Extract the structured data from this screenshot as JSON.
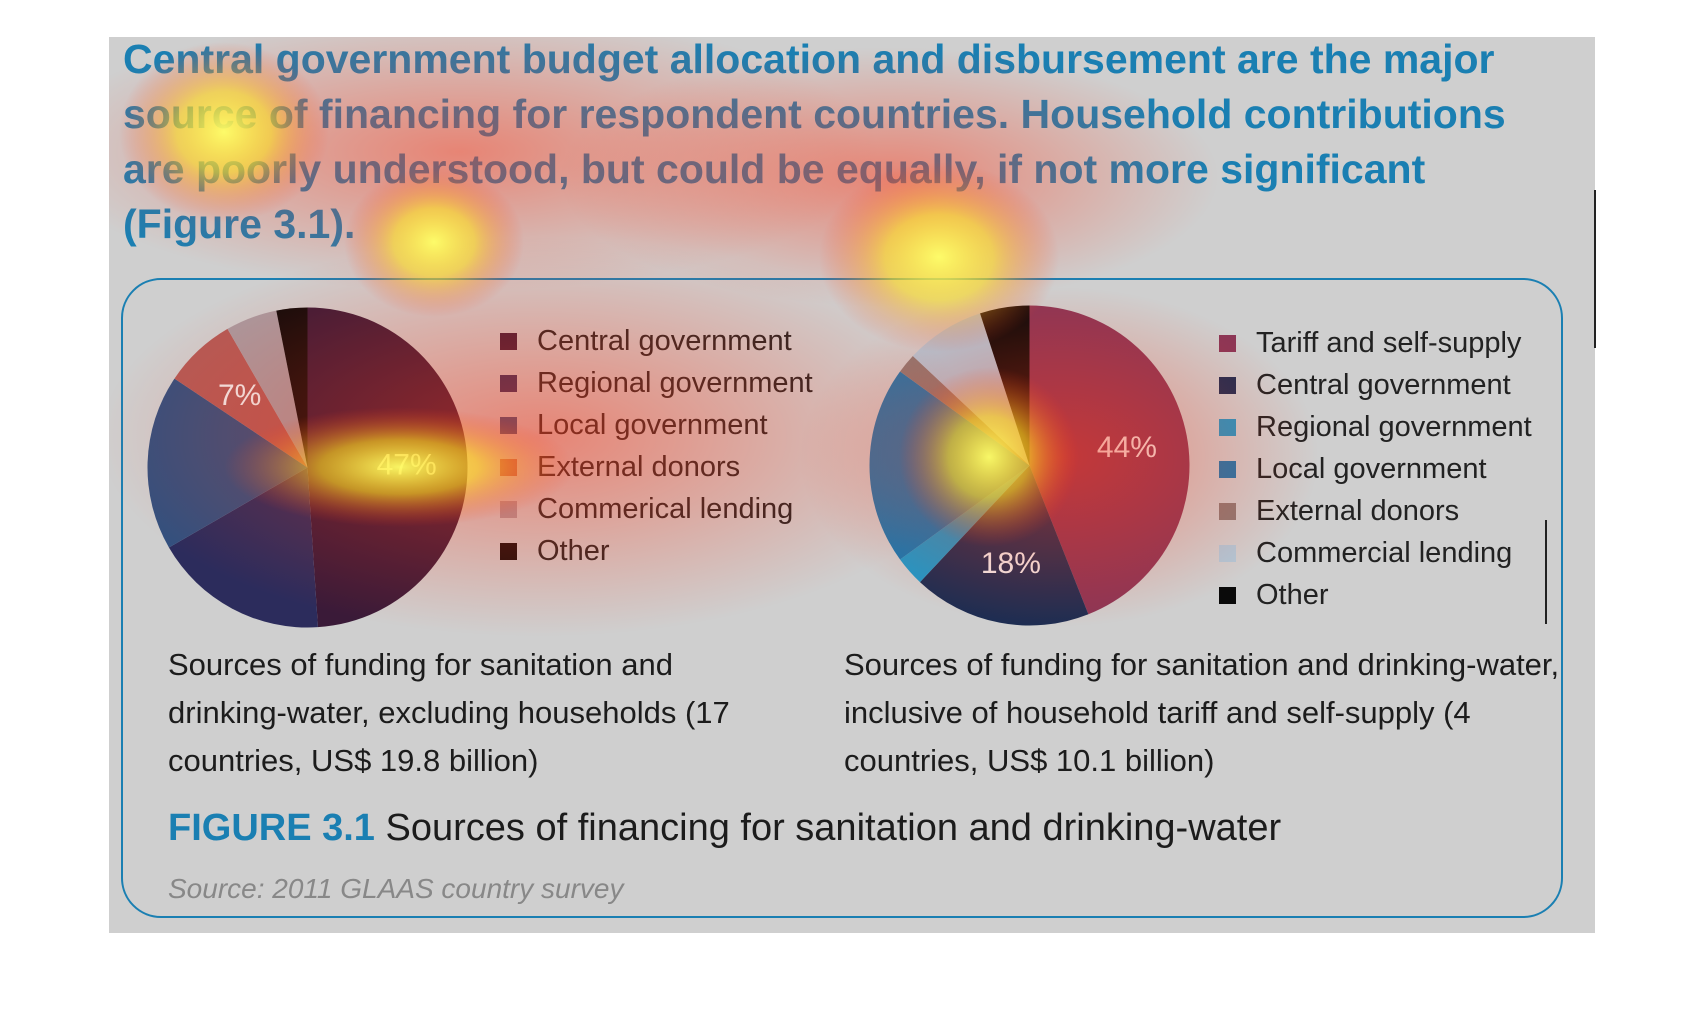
{
  "headline": "Central government budget allocation and disbursement are the major source of financing for respondent countries. Household contributions are poorly understood, but could be equally, if not more significant (Figure 3.1).",
  "colors": {
    "accent": "#1a7fb2",
    "panel": "#cfcfcf",
    "heat_hot": "#ffff33",
    "heat_warm": "#ff3a1a"
  },
  "figure": {
    "number": "FIGURE 3.1",
    "title": "Sources of financing for sanitation and drinking-water",
    "source": "Source: 2011 GLAAS country survey"
  },
  "chart_data": [
    {
      "type": "pie",
      "caption": "Sources of funding for sanitation and drinking-water, excluding households (17 countries, US$ 19.8 billion)",
      "labels": [
        "Central government",
        "Regional government",
        "Local government",
        "External donors",
        "Commerical lending",
        "Other"
      ],
      "values": [
        47,
        17,
        17,
        7,
        5,
        3
      ],
      "data_labels": [
        "47%",
        "",
        "",
        "7%",
        "",
        ""
      ],
      "colors": [
        "#3a1a38",
        "#2c2c5c",
        "#33507e",
        "#b35a56",
        "#a89aa0",
        "#0e0a0a"
      ],
      "legend_position": "right"
    },
    {
      "type": "pie",
      "caption": "Sources of funding for sanitation and drinking-water, inclusive of household tariff and self-supply (4 countries, US$ 10.1 billion)",
      "labels": [
        "Tariff and self-supply",
        "Central government",
        "Regional government",
        "Local government",
        "External donors",
        "Commercial lending",
        "Other"
      ],
      "values": [
        44,
        18,
        3,
        20,
        2,
        8,
        5
      ],
      "data_labels": [
        "44%",
        "18%",
        "",
        "",
        "",
        "",
        ""
      ],
      "colors": [
        "#8b3656",
        "#1d2d52",
        "#1f98c8",
        "#1878b0",
        "#8a7a76",
        "#b0c8d8",
        "#0a0a0a"
      ],
      "legend_position": "right"
    }
  ]
}
